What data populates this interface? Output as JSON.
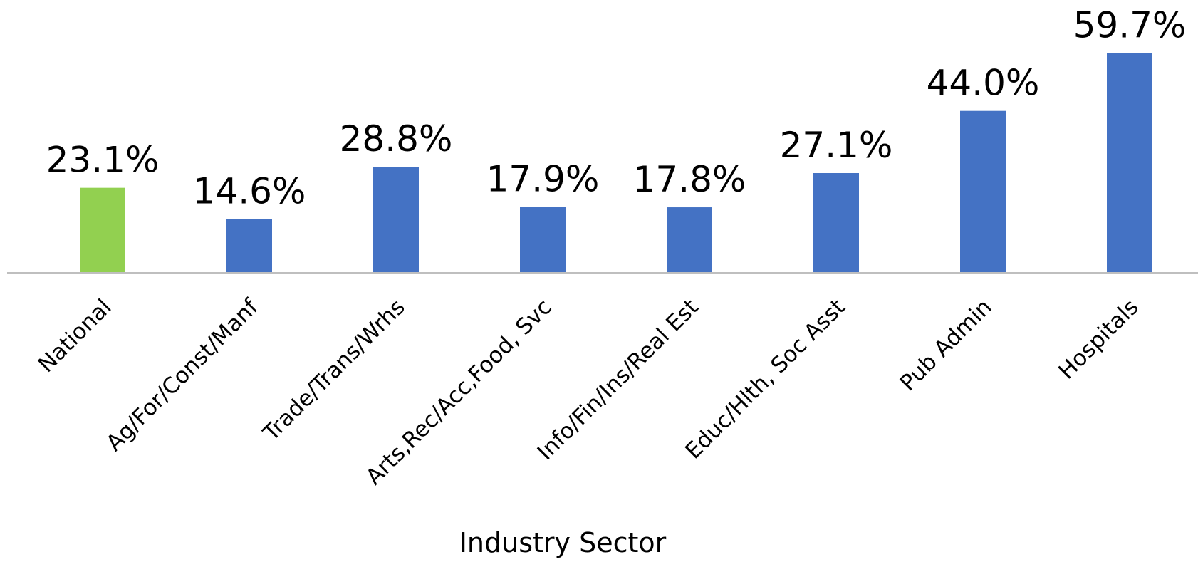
{
  "chart_data": {
    "type": "bar",
    "title": "",
    "xlabel": "Industry Sector",
    "ylabel": "",
    "ylim": [
      0,
      62
    ],
    "grid": false,
    "legend": "none",
    "categories": [
      "National",
      "Ag/For/Const/Manf",
      "Trade/Trans/Wrhs",
      "Arts,Rec/Acc,Food, Svc",
      "Info/Fin/Ins/Real Est",
      "Educ/Hlth, Soc Asst",
      "Pub Admin",
      "Hospitals"
    ],
    "values": [
      23.1,
      14.6,
      28.8,
      17.9,
      17.8,
      27.1,
      44.0,
      59.7
    ],
    "data_labels": [
      "23.1%",
      "14.6%",
      "28.8%",
      "17.9%",
      "17.8%",
      "27.1%",
      "44.0%",
      "59.7%"
    ],
    "colors": {
      "highlight": "#92D050",
      "default": "#4472C4",
      "axis": "#BFBFBF"
    },
    "highlight_categories": [
      "National"
    ]
  }
}
